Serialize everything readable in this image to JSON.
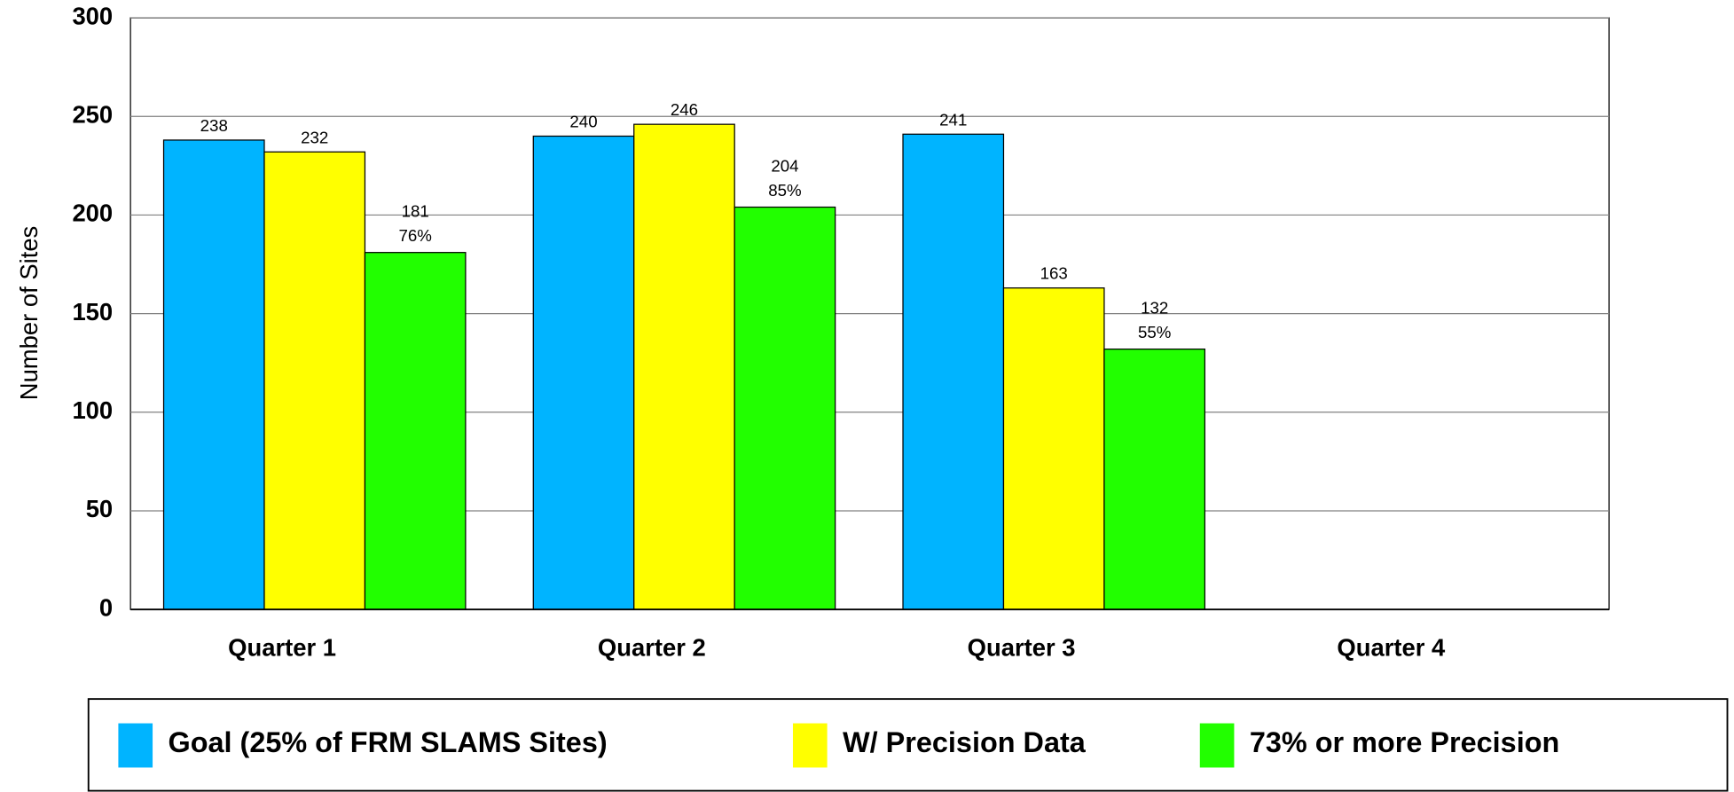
{
  "chart_data": {
    "type": "bar",
    "y_label": "Number of Sites",
    "categories": [
      "Quarter 1",
      "Quarter 2",
      "Quarter 3",
      "Quarter 4"
    ],
    "series": [
      {
        "name": "Goal (25% of FRM SLAMS Sites)",
        "color": "#00b4ff",
        "values": [
          238,
          240,
          241,
          null
        ]
      },
      {
        "name": "W/ Precision Data",
        "color": "#ffff00",
        "values": [
          232,
          246,
          163,
          null
        ]
      },
      {
        "name": "73% or more Precision",
        "color": "#22ff00",
        "values": [
          181,
          204,
          132,
          null
        ],
        "percent_labels": [
          "76%",
          "85%",
          "55%",
          null
        ]
      }
    ],
    "ylim": [
      0,
      300
    ],
    "yticks": [
      0,
      50,
      100,
      150,
      200,
      250,
      300
    ],
    "grid": true,
    "legend": "bottom"
  }
}
